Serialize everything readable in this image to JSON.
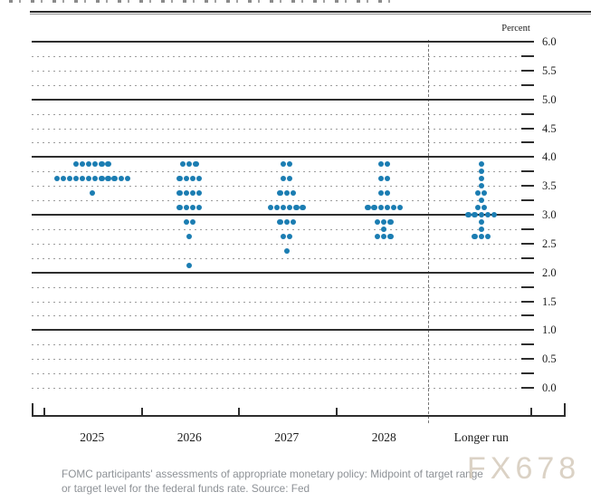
{
  "watermark": "FX678",
  "caption": {
    "line1": "FOMC participants' assessments of appropriate monetary policy: Midpoint of target range",
    "line2": "or target level for the federal funds rate. Source: Fed"
  },
  "chart_data": {
    "type": "scatter",
    "subtype": "fomc-dot-plot",
    "title": "",
    "xlabel": "",
    "ylabel": "Percent",
    "ylim": [
      0.0,
      6.0
    ],
    "y_label_step": 0.5,
    "y_grid_step": 0.25,
    "y_tick_labels": [
      "6.0",
      "5.5",
      "5.0",
      "4.5",
      "4.0",
      "3.5",
      "3.0",
      "2.5",
      "2.0",
      "1.5",
      "1.0",
      "0.5",
      "0.0"
    ],
    "grid": "solid lines at whole percents, dotted lines at quarter percents",
    "legend_position": "none",
    "dot_color": "#1b7db2",
    "categories": [
      "2025",
      "2026",
      "2027",
      "2028",
      "Longer run"
    ],
    "separator_before_category": "Longer run",
    "columns": [
      {
        "category": "2025",
        "dots": [
          [
            3.875,
            6
          ],
          [
            3.625,
            12
          ],
          [
            3.375,
            1
          ]
        ]
      },
      {
        "category": "2026",
        "dots": [
          [
            3.875,
            3
          ],
          [
            3.625,
            4
          ],
          [
            3.375,
            4
          ],
          [
            3.125,
            4
          ],
          [
            2.875,
            2
          ],
          [
            2.625,
            1
          ],
          [
            2.125,
            1
          ]
        ]
      },
      {
        "category": "2027",
        "dots": [
          [
            3.875,
            2
          ],
          [
            3.625,
            2
          ],
          [
            3.375,
            3
          ],
          [
            3.125,
            6
          ],
          [
            2.875,
            3
          ],
          [
            2.625,
            2
          ],
          [
            2.375,
            1
          ]
        ]
      },
      {
        "category": "2028",
        "dots": [
          [
            3.875,
            2
          ],
          [
            3.625,
            2
          ],
          [
            3.375,
            2
          ],
          [
            3.125,
            6
          ],
          [
            2.875,
            3
          ],
          [
            2.75,
            1
          ],
          [
            2.625,
            3
          ]
        ]
      },
      {
        "category": "Longer run",
        "dots": [
          [
            3.875,
            1
          ],
          [
            3.75,
            1
          ],
          [
            3.625,
            1
          ],
          [
            3.5,
            1
          ],
          [
            3.375,
            2
          ],
          [
            3.25,
            1
          ],
          [
            3.125,
            2
          ],
          [
            3.0,
            5
          ],
          [
            2.875,
            1
          ],
          [
            2.75,
            1
          ],
          [
            2.625,
            3
          ]
        ]
      }
    ]
  }
}
